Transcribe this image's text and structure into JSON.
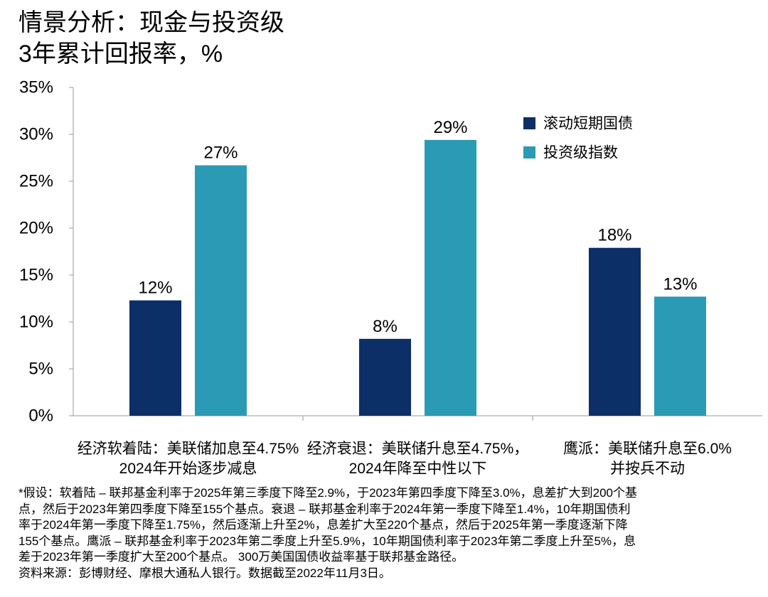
{
  "chart_data": {
    "type": "bar",
    "title": "情景分析：现金与投资级",
    "subtitle": "3年累计回报率，%",
    "categories": [
      [
        "经济软着陆：美联储加息至4.75%",
        "2024年开始逐步减息"
      ],
      [
        "经济衰退：美联储升息至4.75%，",
        "2024年降至中性以下"
      ],
      [
        "鹰派：美联储升息至6.0%",
        "并按兵不动"
      ]
    ],
    "series": [
      {
        "name": "滚动短期国债",
        "color": "#0b2f66",
        "values": [
          12.3,
          8.2,
          17.9
        ],
        "labels": [
          "12%",
          "8%",
          "18%"
        ]
      },
      {
        "name": "投资级指数",
        "color": "#2a9ab5",
        "values": [
          26.7,
          29.4,
          12.7
        ],
        "labels": [
          "27%",
          "29%",
          "13%"
        ]
      }
    ],
    "ylim": [
      0,
      35
    ],
    "yticks": [
      {
        "value": 0,
        "label": "0%"
      },
      {
        "value": 5,
        "label": "5%"
      },
      {
        "value": 10,
        "label": "10%"
      },
      {
        "value": 15,
        "label": "15%"
      },
      {
        "value": 20,
        "label": "20%"
      },
      {
        "value": 25,
        "label": "25%"
      },
      {
        "value": 30,
        "label": "30%"
      },
      {
        "value": 35,
        "label": "35%"
      }
    ],
    "legend_position": "top-right",
    "grid": false
  },
  "footnotes": [
    "*假设：软着陆 – 联邦基金利率于2025年第三季度下降至2.9%，于2023年第四季度下降至3.0%，息差扩大到200个基",
    "点，然后于2023年第四季度下降至155个基点。衰退 – 联邦基金利率于2024年第一季度下降至1.4%，10年期国债利",
    "率于2024年第一季度下降至1.75%，然后逐渐上升至2%，息差扩大至220个基点，然后于2025年第一季度逐渐下降",
    "155个基点。鹰派 – 联邦基金利率于2023年第二季度上升至5.9%，10年期国债利率于2023年第二季度上升至5%，息",
    "差于2023年第一季度扩大至200个基点。 300万美国国债收益率基于联邦基金路径。",
    "资料来源：彭博财经、摩根大通私人银行。数据截至2022年11月3日。"
  ]
}
